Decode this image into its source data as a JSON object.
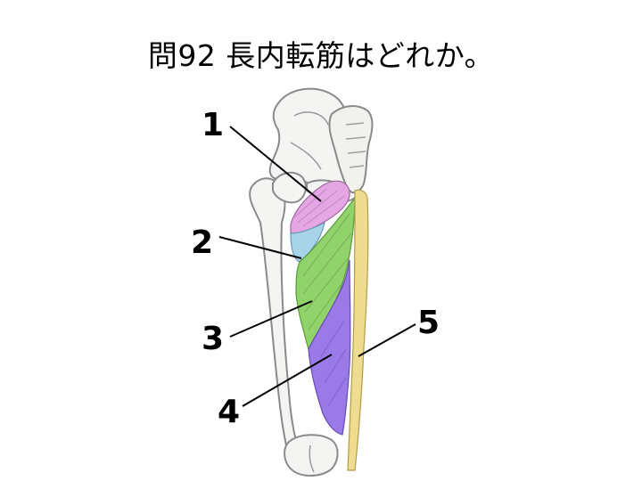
{
  "question": {
    "title": "問92 長内転筋はどれか。"
  },
  "labels": [
    "1",
    "2",
    "3",
    "4",
    "5"
  ],
  "colors": {
    "bone_fill": "#f4f4f2",
    "bone_stroke": "#8a8a8a",
    "muscle_1": "#e6a6e6",
    "muscle_2": "#a8d4ea",
    "muscle_3": "#8fd36a",
    "muscle_4": "#9a7ae6",
    "muscle_5": "#eedd90",
    "leader_line": "#000000"
  }
}
